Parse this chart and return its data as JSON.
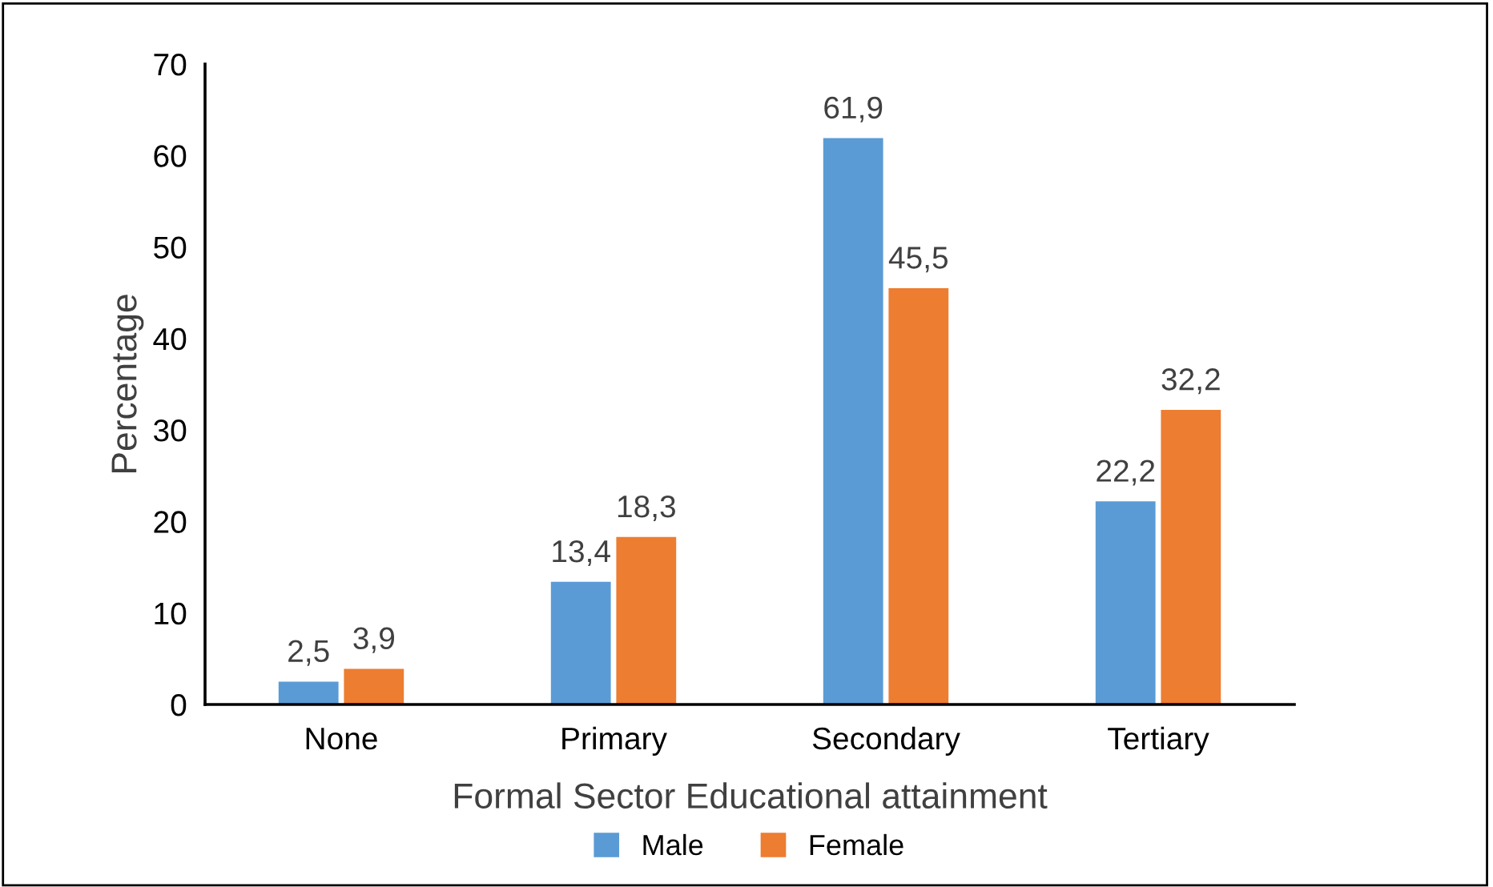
{
  "chart_data": {
    "type": "bar",
    "xlabel": "Formal Sector Educational attainment",
    "ylabel": "Percentage",
    "categories": [
      "None",
      "Primary",
      "Secondary",
      "Tertiary"
    ],
    "series": [
      {
        "name": "Male",
        "color": "#5b9bd5",
        "values": [
          2.5,
          13.4,
          61.9,
          22.2
        ],
        "value_labels": [
          "2,5",
          "13,4",
          "61,9",
          "22,2"
        ]
      },
      {
        "name": "Female",
        "color": "#ed7d31",
        "values": [
          3.9,
          18.3,
          45.5,
          32.2
        ],
        "value_labels": [
          "3,9",
          "18,3",
          "45,5",
          "32,2"
        ]
      }
    ],
    "ylim": [
      0,
      70
    ],
    "yticks": [
      0,
      10,
      20,
      30,
      40,
      50,
      60,
      70
    ],
    "grid": false,
    "legend": "bottom"
  }
}
